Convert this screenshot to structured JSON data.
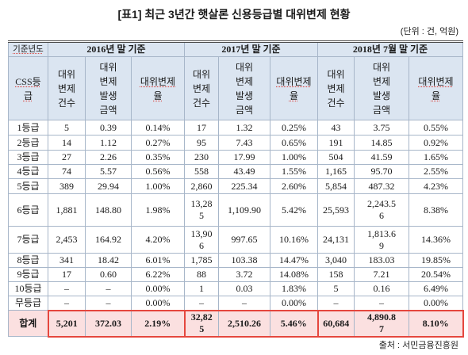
{
  "title": "[표1] 최근 3년간 햇살론 신용등급별 대위변제 현황",
  "unit": "(단위 : 건, 억원)",
  "table": {
    "corner_top": "기준년도",
    "corner_bottom": "CSS등급",
    "periods": [
      "2016년 말 기준",
      "2017년 말 기준",
      "2018년 7월 말 기준"
    ],
    "measures": [
      "대위변제건수",
      "대위변제발생금액",
      "대위변제율"
    ],
    "rows": [
      {
        "grade": "1등급",
        "cells": [
          "5",
          "0.39",
          "0.14%",
          "17",
          "1.32",
          "0.25%",
          "43",
          "3.75",
          "0.55%"
        ]
      },
      {
        "grade": "2등급",
        "cells": [
          "14",
          "1.12",
          "0.27%",
          "95",
          "7.43",
          "0.65%",
          "191",
          "14.85",
          "0.92%"
        ]
      },
      {
        "grade": "3등급",
        "cells": [
          "27",
          "2.26",
          "0.35%",
          "230",
          "17.99",
          "1.00%",
          "504",
          "41.59",
          "1.65%"
        ]
      },
      {
        "grade": "4등급",
        "cells": [
          "74",
          "5.57",
          "0.56%",
          "558",
          "43.49",
          "1.55%",
          "1,165",
          "95.70",
          "2.55%"
        ]
      },
      {
        "grade": "5등급",
        "cells": [
          "389",
          "29.94",
          "1.00%",
          "2,860",
          "225.34",
          "2.60%",
          "5,854",
          "487.32",
          "4.23%"
        ]
      },
      {
        "grade": "6등급",
        "cells": [
          "1,881",
          "148.80",
          "1.98%",
          "13,285",
          "1,109.90",
          "5.42%",
          "25,593",
          "2,243.56",
          "8.38%"
        ]
      },
      {
        "grade": "7등급",
        "cells": [
          "2,453",
          "164.92",
          "4.20%",
          "13,906",
          "997.65",
          "10.16%",
          "24,131",
          "1,813.69",
          "14.36%"
        ]
      },
      {
        "grade": "8등급",
        "cells": [
          "341",
          "18.42",
          "6.01%",
          "1,785",
          "103.38",
          "14.47%",
          "3,040",
          "183.03",
          "19.85%"
        ]
      },
      {
        "grade": "9등급",
        "cells": [
          "17",
          "0.60",
          "6.22%",
          "88",
          "3.72",
          "14.08%",
          "158",
          "7.21",
          "20.54%"
        ]
      },
      {
        "grade": "10등급",
        "cells": [
          "–",
          "–",
          "0.00%",
          "1",
          "0.03",
          "1.83%",
          "5",
          "0.16",
          "6.49%"
        ]
      },
      {
        "grade": "무등급",
        "cells": [
          "–",
          "–",
          "0.00%",
          "–",
          "–",
          "0.00%",
          "–",
          "–",
          "0.00%"
        ]
      }
    ],
    "total": {
      "label": "합계",
      "cells": [
        "5,201",
        "372.03",
        "2.19%",
        "32,825",
        "2,510.26",
        "5.46%",
        "60,684",
        "4,890.87",
        "8.10%"
      ]
    }
  },
  "source": "출처 : 서민금융진흥원",
  "colors": {
    "header_bg": "#dbe5f1",
    "total_bg": "#fbe0e0",
    "total_outline": "#e5473e",
    "grid_line": "#a7b6c9"
  }
}
